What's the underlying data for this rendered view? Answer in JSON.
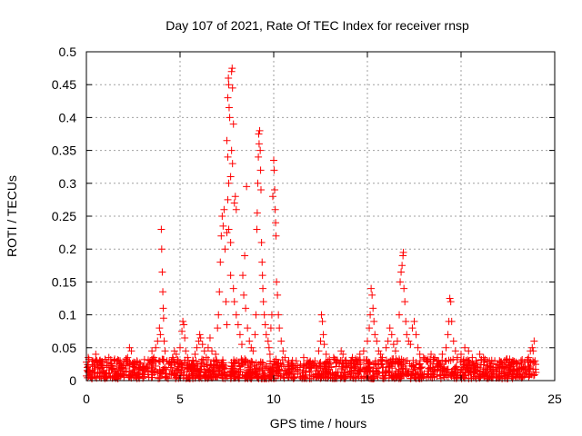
{
  "chart_data": {
    "type": "scatter",
    "title": "Day 107 of 2021, Rate Of TEC Index for receiver rnsp",
    "xlabel": "GPS time / hours",
    "ylabel": "ROTI / TECUs",
    "xlim": [
      0,
      25
    ],
    "ylim": [
      0,
      0.5
    ],
    "x_ticks": [
      "0",
      "5",
      "10",
      "15",
      "20",
      "25"
    ],
    "y_ticks": [
      "0",
      "0.05",
      "0.1",
      "0.15",
      "0.2",
      "0.25",
      "0.3",
      "0.35",
      "0.4",
      "0.45",
      "0.5"
    ],
    "grid": true,
    "marker": "+",
    "series_color": "#ff0000",
    "points": [
      [
        0.0,
        0.028
      ],
      [
        0.05,
        0.02
      ],
      [
        0.1,
        0.035
      ],
      [
        0.2,
        0.015
      ],
      [
        0.3,
        0.03
      ],
      [
        0.4,
        0.022
      ],
      [
        0.5,
        0.04
      ],
      [
        0.6,
        0.018
      ],
      [
        0.7,
        0.03
      ],
      [
        0.8,
        0.025
      ],
      [
        0.9,
        0.015
      ],
      [
        1.0,
        0.032
      ],
      [
        1.1,
        0.02
      ],
      [
        1.2,
        0.035
      ],
      [
        1.3,
        0.025
      ],
      [
        1.4,
        0.018
      ],
      [
        1.5,
        0.03
      ],
      [
        1.6,
        0.022
      ],
      [
        1.7,
        0.015
      ],
      [
        1.8,
        0.03
      ],
      [
        1.9,
        0.02
      ],
      [
        2.0,
        0.028
      ],
      [
        2.1,
        0.018
      ],
      [
        2.2,
        0.035
      ],
      [
        2.3,
        0.05
      ],
      [
        2.4,
        0.045
      ],
      [
        2.5,
        0.025
      ],
      [
        2.6,
        0.02
      ],
      [
        2.7,
        0.03
      ],
      [
        2.8,
        0.018
      ],
      [
        2.9,
        0.025
      ],
      [
        3.0,
        0.02
      ],
      [
        3.1,
        0.032
      ],
      [
        3.2,
        0.022
      ],
      [
        3.3,
        0.015
      ],
      [
        3.4,
        0.03
      ],
      [
        3.5,
        0.045
      ],
      [
        3.6,
        0.035
      ],
      [
        3.7,
        0.05
      ],
      [
        3.8,
        0.06
      ],
      [
        3.9,
        0.08
      ],
      [
        3.95,
        0.07
      ],
      [
        4.0,
        0.23
      ],
      [
        4.02,
        0.2
      ],
      [
        4.05,
        0.165
      ],
      [
        4.08,
        0.135
      ],
      [
        4.1,
        0.11
      ],
      [
        4.12,
        0.095
      ],
      [
        4.15,
        0.06
      ],
      [
        4.2,
        0.045
      ],
      [
        4.3,
        0.03
      ],
      [
        4.4,
        0.025
      ],
      [
        4.5,
        0.02
      ],
      [
        4.6,
        0.035
      ],
      [
        4.7,
        0.045
      ],
      [
        4.8,
        0.04
      ],
      [
        4.9,
        0.03
      ],
      [
        5.0,
        0.05
      ],
      [
        5.1,
        0.075
      ],
      [
        5.15,
        0.09
      ],
      [
        5.2,
        0.085
      ],
      [
        5.25,
        0.065
      ],
      [
        5.3,
        0.045
      ],
      [
        5.4,
        0.035
      ],
      [
        5.5,
        0.025
      ],
      [
        5.6,
        0.02
      ],
      [
        5.7,
        0.03
      ],
      [
        5.8,
        0.04
      ],
      [
        5.9,
        0.05
      ],
      [
        6.0,
        0.06
      ],
      [
        6.05,
        0.07
      ],
      [
        6.1,
        0.065
      ],
      [
        6.2,
        0.055
      ],
      [
        6.3,
        0.045
      ],
      [
        6.4,
        0.035
      ],
      [
        6.5,
        0.05
      ],
      [
        6.6,
        0.065
      ],
      [
        6.7,
        0.045
      ],
      [
        6.8,
        0.03
      ],
      [
        6.9,
        0.04
      ],
      [
        7.0,
        0.08
      ],
      [
        7.05,
        0.1
      ],
      [
        7.1,
        0.135
      ],
      [
        7.15,
        0.18
      ],
      [
        7.2,
        0.22
      ],
      [
        7.25,
        0.25
      ],
      [
        7.3,
        0.235
      ],
      [
        7.35,
        0.26
      ],
      [
        7.4,
        0.2
      ],
      [
        7.45,
        0.12
      ],
      [
        7.5,
        0.085
      ],
      [
        7.55,
        0.43
      ],
      [
        7.58,
        0.46
      ],
      [
        7.6,
        0.45
      ],
      [
        7.62,
        0.415
      ],
      [
        7.65,
        0.4
      ],
      [
        7.5,
        0.365
      ],
      [
        7.55,
        0.34
      ],
      [
        7.6,
        0.3
      ],
      [
        7.55,
        0.275
      ],
      [
        7.5,
        0.225
      ],
      [
        7.6,
        0.23
      ],
      [
        7.7,
        0.21
      ],
      [
        7.75,
        0.47
      ],
      [
        7.78,
        0.475
      ],
      [
        7.8,
        0.445
      ],
      [
        7.85,
        0.39
      ],
      [
        7.75,
        0.35
      ],
      [
        7.8,
        0.33
      ],
      [
        7.7,
        0.31
      ],
      [
        7.9,
        0.27
      ],
      [
        7.95,
        0.28
      ],
      [
        8.0,
        0.26
      ],
      [
        7.7,
        0.16
      ],
      [
        7.85,
        0.14
      ],
      [
        7.9,
        0.12
      ],
      [
        8.0,
        0.1
      ],
      [
        8.1,
        0.085
      ],
      [
        8.2,
        0.07
      ],
      [
        8.3,
        0.055
      ],
      [
        8.35,
        0.16
      ],
      [
        8.4,
        0.13
      ],
      [
        8.45,
        0.19
      ],
      [
        8.5,
        0.11
      ],
      [
        8.55,
        0.295
      ],
      [
        8.6,
        0.08
      ],
      [
        8.7,
        0.06
      ],
      [
        8.8,
        0.05
      ],
      [
        8.9,
        0.045
      ],
      [
        9.0,
        0.07
      ],
      [
        9.05,
        0.1
      ],
      [
        9.1,
        0.23
      ],
      [
        9.12,
        0.255
      ],
      [
        9.15,
        0.3
      ],
      [
        9.18,
        0.34
      ],
      [
        9.2,
        0.375
      ],
      [
        9.25,
        0.38
      ],
      [
        9.22,
        0.36
      ],
      [
        9.28,
        0.35
      ],
      [
        9.3,
        0.32
      ],
      [
        9.32,
        0.29
      ],
      [
        9.35,
        0.21
      ],
      [
        9.38,
        0.18
      ],
      [
        9.4,
        0.16
      ],
      [
        9.42,
        0.14
      ],
      [
        9.45,
        0.12
      ],
      [
        9.5,
        0.1
      ],
      [
        9.55,
        0.085
      ],
      [
        9.6,
        0.07
      ],
      [
        9.7,
        0.06
      ],
      [
        9.75,
        0.05
      ],
      [
        9.8,
        0.04
      ],
      [
        9.85,
        0.08
      ],
      [
        9.9,
        0.1
      ],
      [
        9.95,
        0.28
      ],
      [
        10.0,
        0.335
      ],
      [
        10.02,
        0.32
      ],
      [
        10.05,
        0.29
      ],
      [
        10.08,
        0.26
      ],
      [
        10.1,
        0.24
      ],
      [
        10.12,
        0.22
      ],
      [
        10.15,
        0.15
      ],
      [
        10.2,
        0.13
      ],
      [
        10.25,
        0.1
      ],
      [
        10.3,
        0.08
      ],
      [
        10.4,
        0.06
      ],
      [
        10.5,
        0.045
      ],
      [
        10.6,
        0.035
      ],
      [
        10.8,
        0.03
      ],
      [
        11.0,
        0.025
      ],
      [
        11.2,
        0.03
      ],
      [
        11.4,
        0.02
      ],
      [
        11.6,
        0.035
      ],
      [
        11.8,
        0.025
      ],
      [
        12.0,
        0.02
      ],
      [
        12.2,
        0.03
      ],
      [
        12.4,
        0.045
      ],
      [
        12.5,
        0.06
      ],
      [
        12.55,
        0.1
      ],
      [
        12.6,
        0.09
      ],
      [
        12.65,
        0.07
      ],
      [
        12.7,
        0.055
      ],
      [
        12.8,
        0.04
      ],
      [
        12.9,
        0.03
      ],
      [
        13.0,
        0.025
      ],
      [
        13.2,
        0.035
      ],
      [
        13.4,
        0.03
      ],
      [
        13.6,
        0.045
      ],
      [
        13.7,
        0.04
      ],
      [
        13.8,
        0.03
      ],
      [
        14.0,
        0.025
      ],
      [
        14.2,
        0.035
      ],
      [
        14.4,
        0.03
      ],
      [
        14.6,
        0.04
      ],
      [
        14.8,
        0.045
      ],
      [
        15.0,
        0.06
      ],
      [
        15.1,
        0.08
      ],
      [
        15.15,
        0.1
      ],
      [
        15.2,
        0.14
      ],
      [
        15.25,
        0.13
      ],
      [
        15.3,
        0.11
      ],
      [
        15.35,
        0.09
      ],
      [
        15.4,
        0.07
      ],
      [
        15.5,
        0.06
      ],
      [
        15.6,
        0.045
      ],
      [
        15.7,
        0.04
      ],
      [
        15.8,
        0.035
      ],
      [
        16.0,
        0.05
      ],
      [
        16.1,
        0.06
      ],
      [
        16.2,
        0.08
      ],
      [
        16.3,
        0.07
      ],
      [
        16.4,
        0.055
      ],
      [
        16.5,
        0.045
      ],
      [
        16.6,
        0.06
      ],
      [
        16.7,
        0.1
      ],
      [
        16.75,
        0.15
      ],
      [
        16.8,
        0.165
      ],
      [
        16.85,
        0.175
      ],
      [
        16.9,
        0.19
      ],
      [
        16.92,
        0.195
      ],
      [
        16.95,
        0.14
      ],
      [
        17.0,
        0.12
      ],
      [
        17.05,
        0.09
      ],
      [
        17.1,
        0.07
      ],
      [
        17.2,
        0.06
      ],
      [
        17.3,
        0.055
      ],
      [
        17.4,
        0.08
      ],
      [
        17.5,
        0.09
      ],
      [
        17.6,
        0.07
      ],
      [
        17.7,
        0.05
      ],
      [
        17.8,
        0.04
      ],
      [
        18.0,
        0.035
      ],
      [
        18.2,
        0.03
      ],
      [
        18.4,
        0.04
      ],
      [
        18.6,
        0.035
      ],
      [
        18.8,
        0.03
      ],
      [
        19.0,
        0.04
      ],
      [
        19.2,
        0.05
      ],
      [
        19.3,
        0.07
      ],
      [
        19.35,
        0.09
      ],
      [
        19.4,
        0.125
      ],
      [
        19.45,
        0.12
      ],
      [
        19.5,
        0.09
      ],
      [
        19.6,
        0.06
      ],
      [
        19.7,
        0.045
      ],
      [
        19.8,
        0.035
      ],
      [
        20.0,
        0.04
      ],
      [
        20.2,
        0.05
      ],
      [
        20.4,
        0.045
      ],
      [
        20.6,
        0.035
      ],
      [
        20.8,
        0.03
      ],
      [
        21.0,
        0.04
      ],
      [
        21.2,
        0.035
      ],
      [
        21.4,
        0.03
      ],
      [
        21.6,
        0.025
      ],
      [
        21.8,
        0.03
      ],
      [
        22.0,
        0.02
      ],
      [
        22.2,
        0.025
      ],
      [
        22.4,
        0.02
      ],
      [
        22.6,
        0.018
      ],
      [
        22.8,
        0.022
      ],
      [
        23.0,
        0.025
      ],
      [
        23.2,
        0.03
      ],
      [
        23.4,
        0.028
      ],
      [
        23.6,
        0.035
      ],
      [
        23.7,
        0.045
      ],
      [
        23.8,
        0.05
      ],
      [
        23.85,
        0.045
      ],
      [
        23.9,
        0.06
      ],
      [
        23.95,
        0.03
      ]
    ]
  }
}
